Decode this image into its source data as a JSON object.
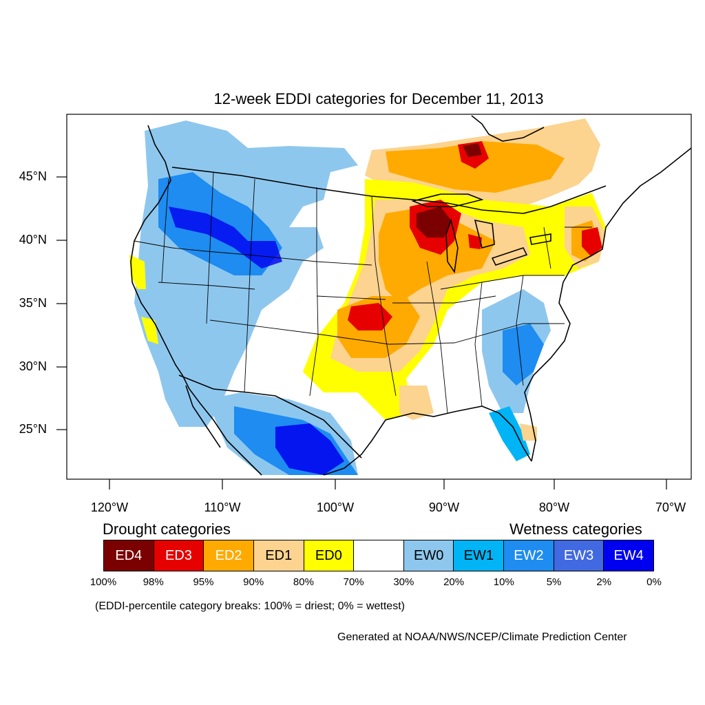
{
  "title": "12-week EDDI categories for December 11, 2013",
  "lat_labels": [
    "45°N",
    "40°N",
    "35°N",
    "30°N",
    "25°N"
  ],
  "lon_labels": [
    "120°W",
    "110°W",
    "100°W",
    "90°W",
    "80°W",
    "70°W"
  ],
  "legend": {
    "drought_heading": "Drought categories",
    "wetness_heading": "Wetness categories",
    "categories": [
      {
        "label": "ED4",
        "color": "#7b0000",
        "text_color": "#ffffff"
      },
      {
        "label": "ED3",
        "color": "#e60000",
        "text_color": "#ffffff"
      },
      {
        "label": "ED2",
        "color": "#ffaa00",
        "text_color": "#ffffff"
      },
      {
        "label": "ED1",
        "color": "#fcd38f",
        "text_color": "#000000"
      },
      {
        "label": "ED0",
        "color": "#ffff00",
        "text_color": "#000000"
      },
      {
        "label": "",
        "color": "#ffffff",
        "text_color": "#000000"
      },
      {
        "label": "EW0",
        "color": "#8ec7ee",
        "text_color": "#000000"
      },
      {
        "label": "EW1",
        "color": "#00b4f5",
        "text_color": "#000000"
      },
      {
        "label": "EW2",
        "color": "#1e8cf0",
        "text_color": "#ffffff"
      },
      {
        "label": "EW3",
        "color": "#4169e1",
        "text_color": "#ffffff"
      },
      {
        "label": "EW4",
        "color": "#0000f0",
        "text_color": "#ffffff"
      }
    ],
    "breaks": [
      "100%",
      "98%",
      "95%",
      "90%",
      "80%",
      "70%",
      "30%",
      "20%",
      "10%",
      "5%",
      "2%",
      "0%"
    ]
  },
  "note": "(EDDI-percentile category breaks: 100% = driest; 0% = wettest)",
  "credit": "Generated at NOAA/NWS/NCEP/Climate Prediction Center"
}
